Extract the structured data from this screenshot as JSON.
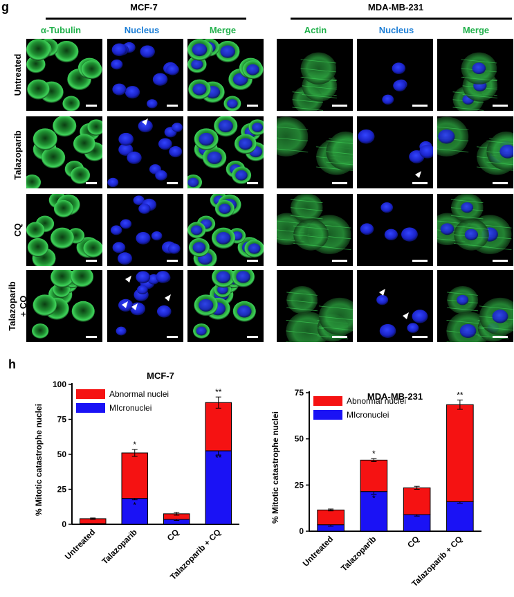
{
  "panel_g": {
    "letter": "g",
    "left_cell_line": "MCF-7",
    "right_cell_line": "MDA-MB-231",
    "left_channels": [
      "α-Tubulin",
      "Nucleus",
      "Merge"
    ],
    "right_channels": [
      "Actin",
      "Nucleus",
      "Merge"
    ],
    "rows": [
      "Untreated",
      "Talazoparib",
      "CQ",
      "Talazoparib\n+ CQ"
    ],
    "colors": {
      "green": "#22b14c",
      "blue": "#1e7fd6",
      "stain_green": "#2db84a",
      "stain_blue": "#1e2cf0"
    }
  },
  "panel_h": {
    "letter": "h"
  },
  "chart_data": [
    {
      "type": "bar",
      "stacked": true,
      "title": "MCF-7",
      "ylabel": "% Mitotic catastrophe nuclei",
      "xlabel": "",
      "categories": [
        "Untreated",
        "Talazoparib",
        "CQ",
        "Talazoparib + CQ"
      ],
      "ylim": [
        0,
        100
      ],
      "yticks": [
        0,
        25,
        50,
        75,
        100
      ],
      "legend": "top-left",
      "series": [
        {
          "name": "MIcronuclei",
          "color": "#1a12f5",
          "values": [
            0.5,
            18.5,
            3.5,
            52.5
          ],
          "errors": [
            0.3,
            1.0,
            0.8,
            3.0
          ],
          "annotations": [
            "",
            "*",
            "",
            "**"
          ]
        },
        {
          "name": "Abnormal nuclei",
          "color": "#f51212",
          "values": [
            3.5,
            32.5,
            4.0,
            34.5
          ],
          "errors": [
            0.5,
            2.5,
            1.0,
            4.0
          ],
          "annotations": [
            "",
            "*",
            "",
            "**"
          ]
        }
      ]
    },
    {
      "type": "bar",
      "stacked": true,
      "title": "MDA-MB-231",
      "ylabel": "% Mitotic catastrophe nuclei",
      "xlabel": "",
      "categories": [
        "Untreated",
        "Talazoparib",
        "CQ",
        "Talazoparib + CQ"
      ],
      "ylim": [
        0,
        75
      ],
      "yticks": [
        0,
        25,
        50,
        75
      ],
      "legend": "top-left",
      "series": [
        {
          "name": "MIcronuclei",
          "color": "#1a12f5",
          "values": [
            3.5,
            21.5,
            9.0,
            16.0
          ],
          "errors": [
            0.8,
            1.5,
            0.8,
            0.8
          ],
          "annotations": [
            "",
            "*",
            "",
            ""
          ]
        },
        {
          "name": "Abnormal nuclei",
          "color": "#f51212",
          "values": [
            8.0,
            17.0,
            14.5,
            52.5
          ],
          "errors": [
            0.5,
            0.8,
            0.8,
            2.5
          ],
          "annotations": [
            "",
            "*",
            "",
            "**"
          ]
        }
      ]
    }
  ]
}
